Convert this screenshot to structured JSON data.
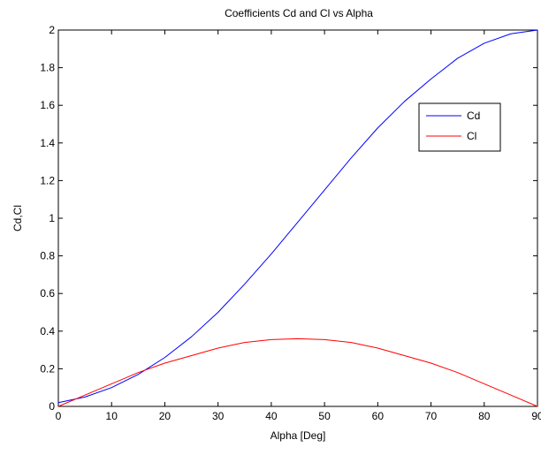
{
  "chart_data": {
    "type": "line",
    "title": "Coefficients Cd and Cl vs Alpha",
    "xlabel": "Alpha [Deg]",
    "ylabel": "Cd,Cl",
    "xlim": [
      0,
      90
    ],
    "ylim": [
      0,
      2
    ],
    "xticks": [
      0,
      10,
      20,
      30,
      40,
      50,
      60,
      70,
      80,
      90
    ],
    "yticks": [
      0,
      0.2,
      0.4,
      0.6,
      0.8,
      1,
      1.2,
      1.4,
      1.6,
      1.8,
      2
    ],
    "grid": false,
    "legend": "right-upper",
    "x": [
      0,
      5,
      10,
      15,
      20,
      25,
      30,
      35,
      40,
      45,
      50,
      55,
      60,
      65,
      70,
      75,
      80,
      85,
      90
    ],
    "series": [
      {
        "name": "Cd",
        "color": "#0000ff",
        "values": [
          0.02,
          0.05,
          0.1,
          0.17,
          0.26,
          0.37,
          0.5,
          0.65,
          0.81,
          0.98,
          1.15,
          1.32,
          1.48,
          1.62,
          1.74,
          1.85,
          1.93,
          1.98,
          2.0
        ]
      },
      {
        "name": "Cl",
        "color": "#ff0000",
        "values": [
          0.0,
          0.06,
          0.12,
          0.18,
          0.23,
          0.27,
          0.31,
          0.34,
          0.355,
          0.36,
          0.355,
          0.34,
          0.31,
          0.27,
          0.23,
          0.18,
          0.12,
          0.06,
          0.0
        ]
      }
    ]
  }
}
